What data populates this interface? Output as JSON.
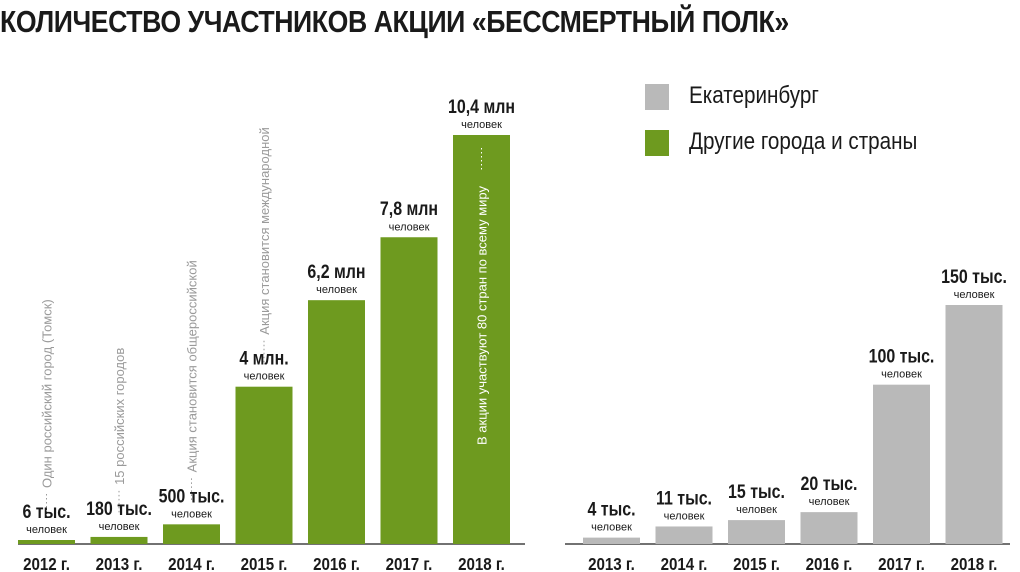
{
  "title": "КОЛИЧЕСТВО УЧАСТНИКОВ АКЦИИ «БЕССМЕРТНЫЙ ПОЛК»",
  "colors": {
    "other": "#6e9a1f",
    "ekb": "#b9b9b9",
    "text": "#1a1a1a",
    "annotation": "#9a9a9a",
    "axis": "#444444"
  },
  "legend": [
    {
      "label": "Екатеринбург",
      "color": "#b9b9b9"
    },
    {
      "label": "Другие города и страны",
      "color": "#6e9a1f"
    }
  ],
  "chart_data": [
    {
      "type": "bar",
      "series": [
        {
          "name": "Другие города и страны"
        }
      ],
      "categories": [
        "2012 г.",
        "2013 г.",
        "2014 г.",
        "2015 г.",
        "2016 г.",
        "2017 г.",
        "2018 г."
      ],
      "values": [
        6000,
        180000,
        500000,
        4000000,
        6200000,
        7800000,
        10400000
      ],
      "value_labels": [
        "6 тыс.",
        "180 тыс.",
        "500 тыс.",
        "4 млн.",
        "6,2 млн",
        "7,8 млн",
        "10,4 млн"
      ],
      "unit_label": "человек",
      "annotations": [
        "Один российский город (Томск)",
        "15 российских городов",
        "Акция становится общероссийской",
        "Акция становится международной",
        "",
        "",
        "В акции участвуют 80 стран по всему миру"
      ]
    },
    {
      "type": "bar",
      "series": [
        {
          "name": "Екатеринбург"
        }
      ],
      "categories": [
        "2013 г.",
        "2014 г.",
        "2015 г.",
        "2016 г.",
        "2017 г.",
        "2018 г."
      ],
      "values": [
        4000,
        11000,
        15000,
        20000,
        100000,
        150000
      ],
      "value_labels": [
        "4 тыс.",
        "11 тыс.",
        "15 тыс.",
        "20 тыс.",
        "100 тыс.",
        "150 тыс."
      ],
      "unit_label": "человек"
    }
  ]
}
